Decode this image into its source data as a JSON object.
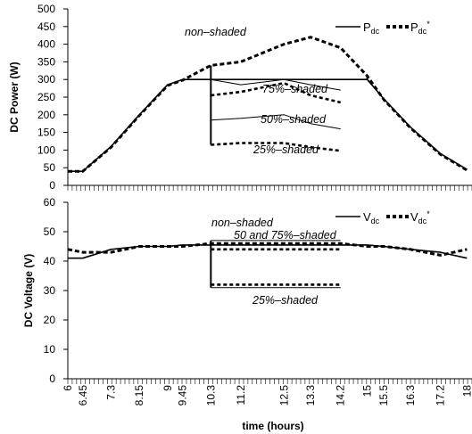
{
  "chart_data": [
    {
      "type": "line",
      "ylabel": "DC Power (W)",
      "ylim": [
        0,
        500
      ],
      "y_ticks": [
        "0",
        "50",
        "100",
        "150",
        "200",
        "250",
        "300",
        "350",
        "400",
        "450",
        "500"
      ],
      "legend": {
        "placement": "top-right",
        "items": [
          {
            "base": "P",
            "sub": "dc",
            "sup": "",
            "style": "solid"
          },
          {
            "base": "P",
            "sub": "dc",
            "sup": "*",
            "style": "dashed"
          }
        ]
      },
      "annotations": [
        "non–shaded",
        "75%–shaded",
        "50%–shaded",
        "25%–shaded"
      ],
      "x": [
        6.0,
        6.45,
        7.3,
        8.15,
        9.0,
        9.45,
        10.3,
        11.2,
        12.5,
        13.3,
        14.2,
        15.0,
        15.5,
        16.3,
        17.2,
        18.0
      ],
      "series": [
        {
          "values": [
            40,
            40,
            110,
            200,
            285,
            300,
            300,
            300,
            300,
            300,
            300,
            300,
            245,
            165,
            90,
            45
          ]
        },
        {
          "values": [
            40,
            40,
            108,
            198,
            283,
            298,
            340,
            350,
            400,
            420,
            390,
            310,
            243,
            163,
            88,
            43
          ]
        },
        {
          "values": [
            null,
            null,
            null,
            null,
            null,
            null,
            300,
            285,
            300,
            285,
            270,
            null,
            null,
            null,
            null,
            null
          ]
        },
        {
          "values": [
            null,
            null,
            null,
            null,
            null,
            null,
            255,
            265,
            290,
            255,
            235,
            null,
            null,
            null,
            null,
            null
          ]
        },
        {
          "values": [
            null,
            null,
            null,
            null,
            null,
            null,
            185,
            190,
            200,
            175,
            160,
            null,
            null,
            null,
            null,
            null
          ]
        },
        {
          "values": [
            null,
            null,
            null,
            null,
            null,
            null,
            115,
            120,
            120,
            108,
            98,
            null,
            null,
            null,
            null,
            null
          ]
        }
      ]
    },
    {
      "type": "line",
      "ylabel": "DC Voltage (V)",
      "xlabel": "time (hours)",
      "ylim": [
        0,
        60
      ],
      "y_ticks": [
        "0",
        "10",
        "20",
        "30",
        "40",
        "50",
        "60"
      ],
      "x_ticks": [
        "6",
        "6.45",
        "7.3",
        "8.15",
        "9",
        "9.45",
        "10.3",
        "11.2",
        "12.5",
        "13.3",
        "14.2",
        "15",
        "15.5",
        "16.3",
        "17.2",
        "18"
      ],
      "legend": {
        "placement": "top-right",
        "items": [
          {
            "base": "V",
            "sub": "dc",
            "sup": "",
            "style": "solid"
          },
          {
            "base": "V",
            "sub": "dc",
            "sup": "*",
            "style": "dashed"
          }
        ]
      },
      "annotations": [
        "non–shaded",
        "50 and 75%–shaded",
        "25%–shaded"
      ],
      "x": [
        6.0,
        6.45,
        7.3,
        8.15,
        9.0,
        9.45,
        10.3,
        11.2,
        12.5,
        13.3,
        14.2,
        15.0,
        15.5,
        16.3,
        17.2,
        18.0
      ],
      "series": [
        {
          "values": [
            41,
            41,
            44,
            45,
            45,
            45.5,
            45.5,
            45.5,
            45.5,
            45.5,
            45.5,
            45.5,
            45,
            44,
            43,
            41
          ]
        },
        {
          "values": [
            44,
            43,
            43,
            45,
            45,
            45,
            46,
            46,
            46,
            46,
            46,
            45,
            45,
            44,
            42,
            44
          ]
        },
        {
          "values": [
            null,
            null,
            null,
            null,
            null,
            null,
            47,
            47,
            47,
            47,
            47,
            null,
            null,
            null,
            null,
            null
          ]
        },
        {
          "values": [
            null,
            null,
            null,
            null,
            null,
            null,
            44,
            44,
            44,
            44,
            44,
            null,
            null,
            null,
            null,
            null
          ]
        },
        {
          "values": [
            null,
            null,
            null,
            null,
            null,
            null,
            31,
            31,
            31,
            31,
            31,
            null,
            null,
            null,
            null,
            null
          ]
        },
        {
          "values": [
            null,
            null,
            null,
            null,
            null,
            null,
            32,
            32,
            32,
            32,
            32,
            null,
            null,
            null,
            null,
            null
          ]
        }
      ]
    }
  ]
}
